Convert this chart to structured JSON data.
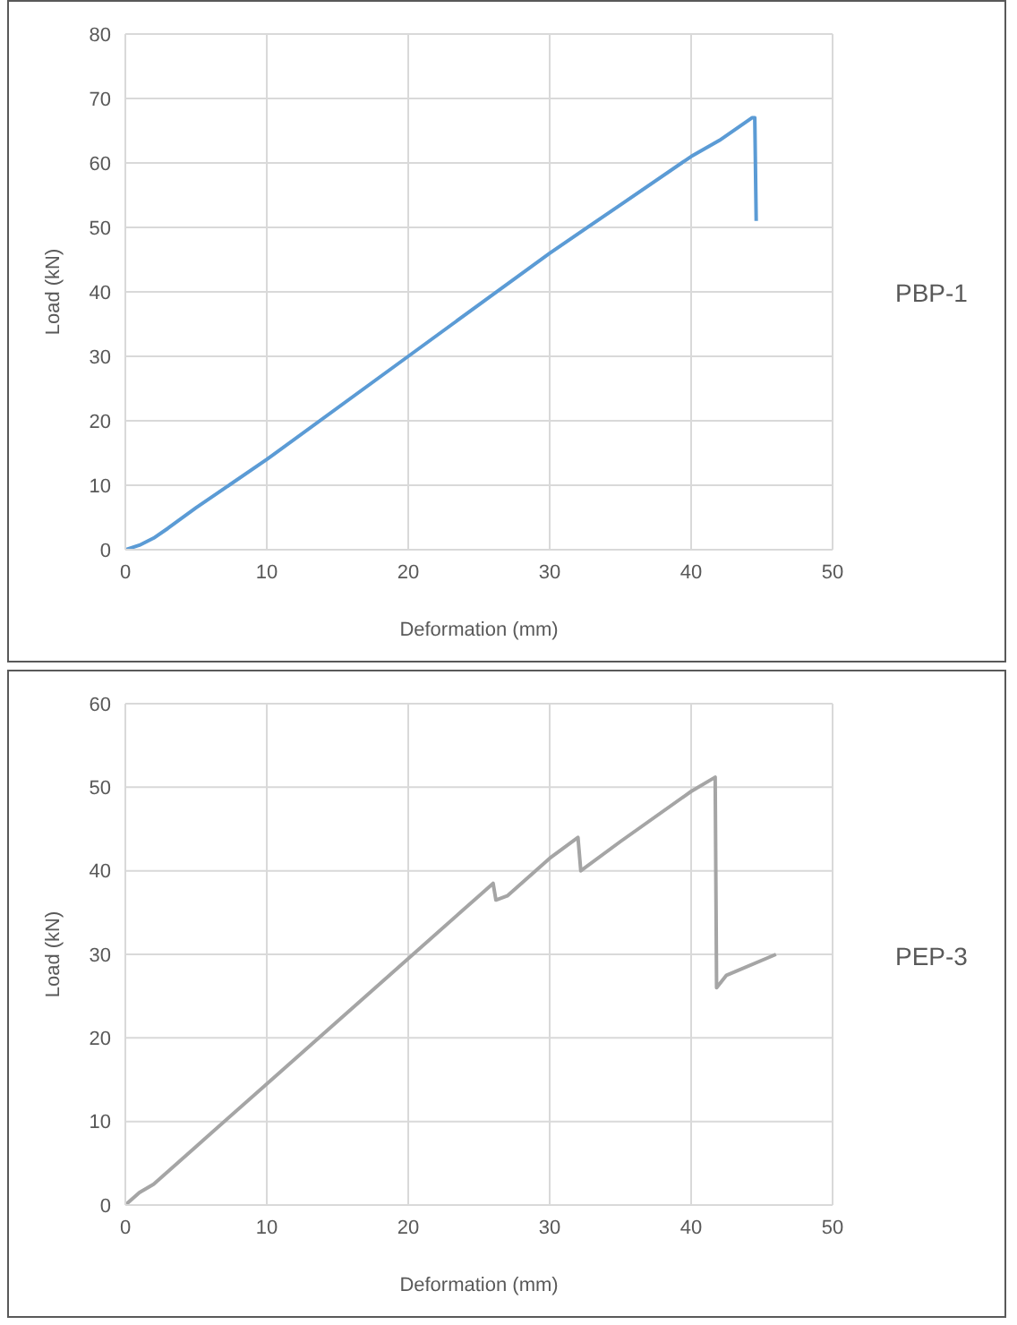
{
  "chart_data": [
    {
      "type": "line",
      "xlabel": "Deformation (mm)",
      "ylabel": "Load (kN)",
      "x": [
        0,
        1,
        2,
        3,
        5,
        10,
        20,
        30,
        35,
        40,
        42,
        44.3,
        44.5,
        44.6
      ],
      "series": [
        {
          "name": "PBP-1",
          "color": "#5b9bd5",
          "values": [
            0,
            0.7,
            1.8,
            3.3,
            6.5,
            14,
            30,
            46,
            53.5,
            61,
            63.5,
            67,
            67,
            51
          ]
        }
      ],
      "xlim": [
        0,
        50
      ],
      "xticks": [
        0,
        10,
        20,
        30,
        40,
        50
      ],
      "ylim": [
        0,
        80
      ],
      "yticks": [
        0,
        10,
        20,
        30,
        40,
        50,
        60,
        70,
        80
      ],
      "grid": true,
      "legend": false,
      "marker": "none",
      "line_style": "solid"
    },
    {
      "type": "line",
      "xlabel": "Deformation (mm)",
      "ylabel": "Load (kN)",
      "x": [
        0,
        1,
        2,
        5,
        10,
        15,
        20,
        25,
        26,
        26.2,
        27,
        30,
        32,
        32.2,
        35,
        40,
        41.7,
        41.8,
        42.5,
        46
      ],
      "series": [
        {
          "name": "PEP-3",
          "color": "#a5a5a5",
          "values": [
            0,
            1.5,
            2.5,
            7,
            14.5,
            22,
            29.5,
            37,
            38.5,
            36.5,
            37,
            41.5,
            44,
            40,
            43.5,
            49.5,
            51.2,
            26,
            27.5,
            30
          ]
        }
      ],
      "xlim": [
        0,
        50
      ],
      "xticks": [
        0,
        10,
        20,
        30,
        40,
        50
      ],
      "ylim": [
        0,
        60
      ],
      "yticks": [
        0,
        10,
        20,
        30,
        40,
        50,
        60
      ],
      "grid": true,
      "legend": false,
      "marker": "none",
      "line_style": "solid"
    }
  ]
}
